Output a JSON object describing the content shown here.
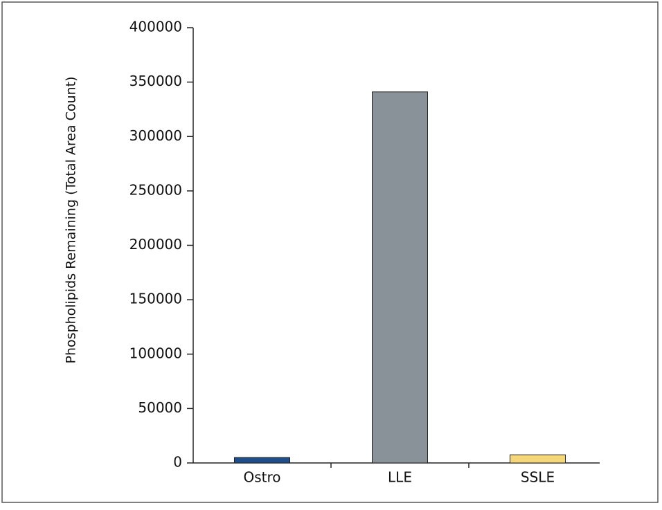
{
  "chart_data": {
    "type": "bar",
    "y_label": "Phospholipids Remaining (Total Area Count)",
    "categories": [
      "Ostro",
      "LLE",
      "SSLE"
    ],
    "values": [
      5000,
      341000,
      7500
    ],
    "colors": [
      "#1f4e8c",
      "#8a9299",
      "#f5d77a"
    ],
    "ylim": [
      0,
      400000
    ],
    "yticks": [
      0,
      50000,
      100000,
      150000,
      200000,
      250000,
      300000,
      350000,
      400000
    ],
    "grid": false
  }
}
